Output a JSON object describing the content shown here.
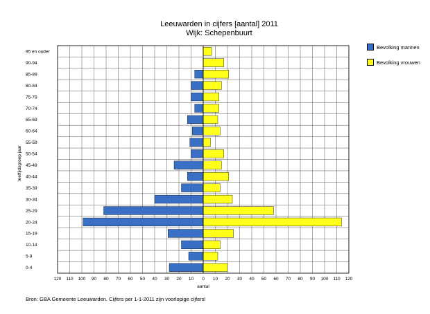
{
  "chart_data": {
    "type": "bar",
    "title": "Leeuwarden in cijfers [aantal] 2011",
    "subtitle": "Wijk: Schepenbuurt",
    "xlabel": "aantal",
    "ylabel": "leeftijdsgroep jaar",
    "xlim": [
      -120,
      120
    ],
    "xticks": [
      120,
      110,
      100,
      90,
      80,
      70,
      60,
      50,
      40,
      30,
      20,
      10,
      0,
      10,
      20,
      30,
      40,
      50,
      60,
      70,
      80,
      90,
      100,
      110,
      120
    ],
    "categories": [
      "95 en ouder",
      "90-94",
      "85-89",
      "80-84",
      "75-79",
      "70-74",
      "65-69",
      "60-64",
      "55-59",
      "50-54",
      "45-49",
      "40-44",
      "35-39",
      "30-34",
      "25-29",
      "20-24",
      "15-19",
      "10-14",
      "5-9",
      "0-4"
    ],
    "series": [
      {
        "name": "Bevolking mannen",
        "color": "#3a6fc6",
        "values": [
          0,
          0,
          7,
          10,
          10,
          7,
          13,
          9,
          11,
          10,
          24,
          13,
          18,
          40,
          82,
          99,
          29,
          18,
          12,
          28
        ]
      },
      {
        "name": "Bevolking vrouwen",
        "color": "#ffff1a",
        "values": [
          7,
          17,
          21,
          15,
          13,
          13,
          12,
          14,
          6,
          17,
          15,
          21,
          14,
          24,
          58,
          114,
          25,
          14,
          12,
          20
        ]
      }
    ],
    "grid": true,
    "legend_position": "top-right"
  },
  "source_note": "Bron: GBA Gemeente Leeuwarden. Cijfers per 1-1-2011 zijn voorlopige cijfers!"
}
